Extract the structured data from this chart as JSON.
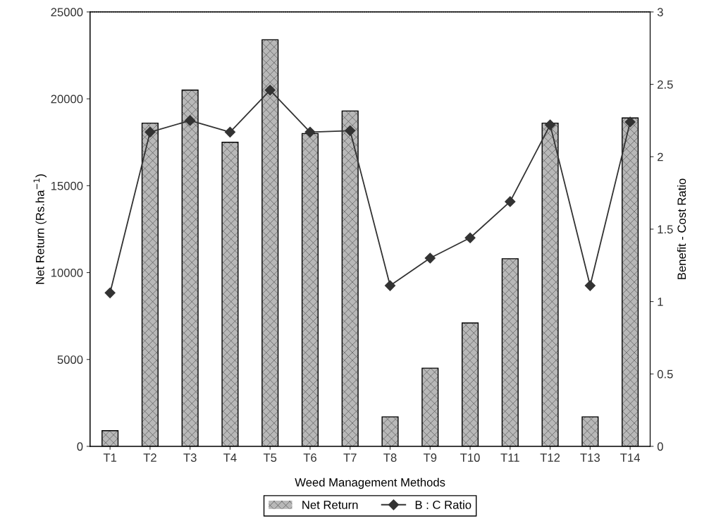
{
  "chart_data": {
    "type": "bar",
    "xlabel": "Weed Management Methods",
    "ylabel": "Net Return (Rs.ha$^{−1}$)",
    "y2label": "Benefit - Cost Ratio",
    "categories": [
      "T1",
      "T2",
      "T3",
      "T4",
      "T5",
      "T6",
      "T7",
      "T8",
      "T9",
      "T10",
      "T11",
      "T12",
      "T13",
      "T14"
    ],
    "series": [
      {
        "name": "Net Return",
        "color": "#b8b8b8",
        "values": [
          900,
          18600,
          20500,
          17500,
          23400,
          18000,
          19300,
          1700,
          4500,
          7100,
          10800,
          18600,
          1700,
          18900
        ]
      },
      {
        "name": "B : C Ratio",
        "type": "line",
        "axis": "y2",
        "color": "#333333",
        "marker": "diamond",
        "values": [
          1.06,
          2.17,
          2.25,
          2.17,
          2.46,
          2.17,
          2.18,
          1.11,
          1.3,
          1.44,
          1.69,
          2.22,
          1.11,
          2.24
        ]
      }
    ],
    "ylim": [
      0,
      25000
    ],
    "yticks": [
      0,
      5000,
      10000,
      15000,
      20000,
      25000
    ],
    "y2lim": [
      0,
      3
    ],
    "y2ticks": [
      0,
      0.5,
      1,
      1.5,
      2,
      2.5,
      3
    ],
    "grid": false,
    "legend": "bottom"
  }
}
